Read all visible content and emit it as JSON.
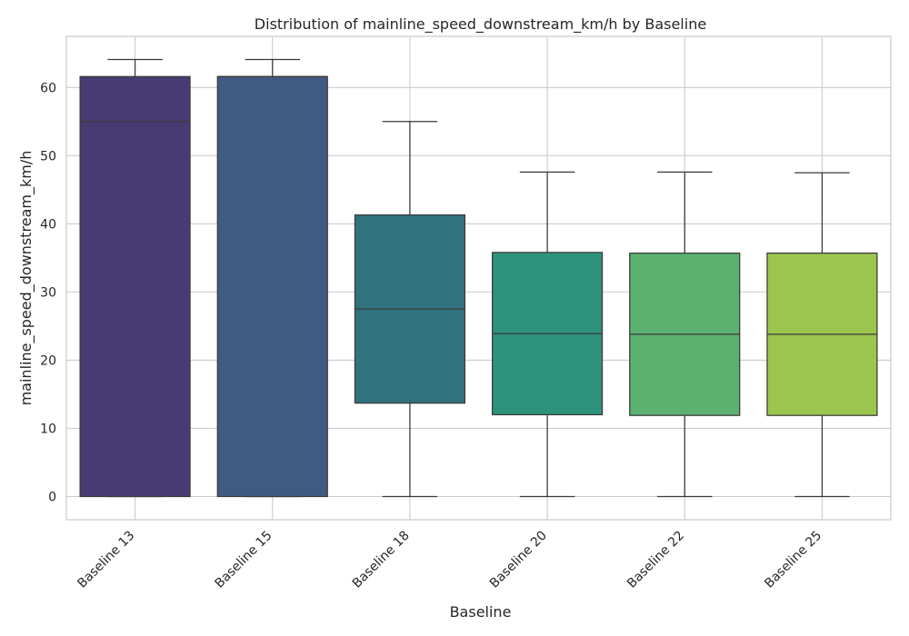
{
  "chart_data": {
    "type": "box",
    "title": "Distribution of mainline_speed_downstream_km/h by Baseline",
    "xlabel": "Baseline",
    "ylabel": "mainline_speed_downstream_km/h",
    "ylim": [
      -3.4,
      67.5
    ],
    "yticks": [
      0,
      10,
      20,
      30,
      40,
      50,
      60
    ],
    "grid": true,
    "categories": [
      "Baseline 13",
      "Baseline 15",
      "Baseline 18",
      "Baseline 20",
      "Baseline 22",
      "Baseline 25"
    ],
    "boxes": [
      {
        "category": "Baseline 13",
        "min": 0,
        "q1": 0,
        "median": 55.0,
        "q3": 61.6,
        "max": 64.1,
        "color": "#483a73"
      },
      {
        "category": "Baseline 15",
        "min": 0,
        "q1": 0,
        "median": 61.6,
        "q3": 61.6,
        "max": 64.1,
        "color": "#3f5b82"
      },
      {
        "category": "Baseline 18",
        "min": 0,
        "q1": 13.7,
        "median": 27.5,
        "q3": 41.3,
        "max": 55.0,
        "color": "#31727f"
      },
      {
        "category": "Baseline 20",
        "min": 0,
        "q1": 12.0,
        "median": 23.9,
        "q3": 35.8,
        "max": 47.6,
        "color": "#2f927d"
      },
      {
        "category": "Baseline 22",
        "min": 0,
        "q1": 11.9,
        "median": 23.8,
        "q3": 35.7,
        "max": 47.6,
        "color": "#5ab170"
      },
      {
        "category": "Baseline 25",
        "min": 0,
        "q1": 11.9,
        "median": 23.8,
        "q3": 35.7,
        "max": 47.5,
        "color": "#9bc64d"
      }
    ]
  }
}
